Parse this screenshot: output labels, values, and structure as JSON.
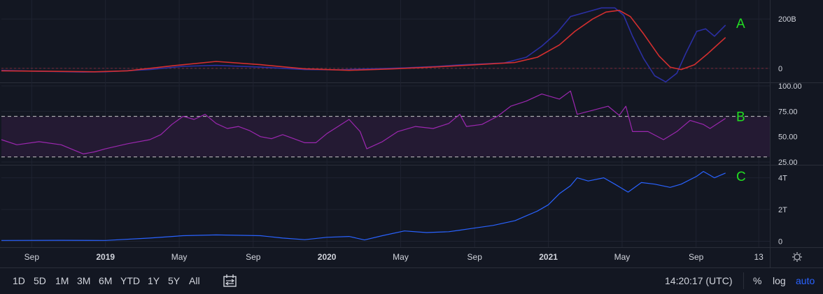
{
  "panes": [
    {
      "id": "A",
      "label": "A",
      "y_ticks": [
        {
          "v": 200,
          "label": "200B"
        },
        {
          "v": 0,
          "label": "0"
        }
      ]
    },
    {
      "id": "B",
      "label": "B",
      "y_ticks": [
        {
          "v": 100,
          "label": "100.00"
        },
        {
          "v": 75,
          "label": "75.00"
        },
        {
          "v": 50,
          "label": "50.00"
        },
        {
          "v": 25,
          "label": "25.00"
        }
      ]
    },
    {
      "id": "C",
      "label": "C",
      "y_ticks": [
        {
          "v": 4,
          "label": "4T"
        },
        {
          "v": 2,
          "label": "2T"
        },
        {
          "v": 0,
          "label": "0"
        }
      ]
    }
  ],
  "x_axis": {
    "ticks": [
      {
        "t": 2018.667,
        "label": "Sep",
        "bold": false
      },
      {
        "t": 2019.0,
        "label": "2019",
        "bold": true
      },
      {
        "t": 2019.333,
        "label": "May",
        "bold": false
      },
      {
        "t": 2019.667,
        "label": "Sep",
        "bold": false
      },
      {
        "t": 2020.0,
        "label": "2020",
        "bold": true
      },
      {
        "t": 2020.333,
        "label": "May",
        "bold": false
      },
      {
        "t": 2020.667,
        "label": "Sep",
        "bold": false
      },
      {
        "t": 2021.0,
        "label": "2021",
        "bold": true
      },
      {
        "t": 2021.333,
        "label": "May",
        "bold": false
      },
      {
        "t": 2021.667,
        "label": "Sep",
        "bold": false
      },
      {
        "t": 2021.95,
        "label": "13",
        "bold": false
      }
    ]
  },
  "chart_data": {
    "type": "line",
    "x_range": [
      2018.53,
      2022.0
    ],
    "panes": [
      {
        "id": "A",
        "ylim": [
          -40,
          260
        ],
        "reference_lines": [
          0
        ],
        "series": [
          {
            "color": "#2b2fa3",
            "points": [
              [
                2018.53,
                -8
              ],
              [
                2018.7,
                -12
              ],
              [
                2018.9,
                -15
              ],
              [
                2019.0,
                -14
              ],
              [
                2019.2,
                -5
              ],
              [
                2019.35,
                8
              ],
              [
                2019.5,
                12
              ],
              [
                2019.7,
                5
              ],
              [
                2019.9,
                -5
              ],
              [
                2020.05,
                -6
              ],
              [
                2020.2,
                -2
              ],
              [
                2020.35,
                2
              ],
              [
                2020.5,
                8
              ],
              [
                2020.6,
                14
              ],
              [
                2020.7,
                18
              ],
              [
                2020.8,
                22
              ],
              [
                2020.9,
                45
              ],
              [
                2020.97,
                90
              ],
              [
                2021.04,
                145
              ],
              [
                2021.1,
                210
              ],
              [
                2021.18,
                230
              ],
              [
                2021.24,
                245
              ],
              [
                2021.3,
                245
              ],
              [
                2021.34,
                215
              ],
              [
                2021.38,
                130
              ],
              [
                2021.43,
                40
              ],
              [
                2021.48,
                -30
              ],
              [
                2021.53,
                -55
              ],
              [
                2021.58,
                -20
              ],
              [
                2021.62,
                60
              ],
              [
                2021.67,
                150
              ],
              [
                2021.71,
                160
              ],
              [
                2021.75,
                130
              ],
              [
                2021.8,
                175
              ]
            ]
          },
          {
            "color": "#d42f2f",
            "points": [
              [
                2018.53,
                -10
              ],
              [
                2018.75,
                -12
              ],
              [
                2018.95,
                -14
              ],
              [
                2019.1,
                -10
              ],
              [
                2019.3,
                10
              ],
              [
                2019.5,
                28
              ],
              [
                2019.7,
                15
              ],
              [
                2019.9,
                -2
              ],
              [
                2020.1,
                -8
              ],
              [
                2020.3,
                -2
              ],
              [
                2020.5,
                6
              ],
              [
                2020.7,
                16
              ],
              [
                2020.85,
                24
              ],
              [
                2020.95,
                45
              ],
              [
                2021.05,
                95
              ],
              [
                2021.12,
                150
              ],
              [
                2021.2,
                200
              ],
              [
                2021.26,
                228
              ],
              [
                2021.32,
                235
              ],
              [
                2021.37,
                210
              ],
              [
                2021.43,
                140
              ],
              [
                2021.5,
                50
              ],
              [
                2021.55,
                5
              ],
              [
                2021.6,
                -5
              ],
              [
                2021.66,
                15
              ],
              [
                2021.72,
                60
              ],
              [
                2021.8,
                125
              ]
            ]
          }
        ]
      },
      {
        "id": "B",
        "ylim": [
          25,
          100
        ],
        "band": [
          30,
          70
        ],
        "reference_lines": [
          70,
          30
        ],
        "series": [
          {
            "color": "#9c27b0",
            "points": [
              [
                2018.53,
                47
              ],
              [
                2018.6,
                42
              ],
              [
                2018.7,
                45
              ],
              [
                2018.8,
                42
              ],
              [
                2018.9,
                33
              ],
              [
                2018.95,
                35
              ],
              [
                2019.0,
                38
              ],
              [
                2019.1,
                43
              ],
              [
                2019.2,
                47
              ],
              [
                2019.25,
                52
              ],
              [
                2019.3,
                62
              ],
              [
                2019.35,
                70
              ],
              [
                2019.4,
                67
              ],
              [
                2019.45,
                72
              ],
              [
                2019.5,
                63
              ],
              [
                2019.55,
                58
              ],
              [
                2019.6,
                60
              ],
              [
                2019.65,
                56
              ],
              [
                2019.7,
                50
              ],
              [
                2019.75,
                48
              ],
              [
                2019.8,
                52
              ],
              [
                2019.85,
                48
              ],
              [
                2019.9,
                44
              ],
              [
                2019.95,
                44
              ],
              [
                2020.0,
                53
              ],
              [
                2020.05,
                60
              ],
              [
                2020.1,
                67
              ],
              [
                2020.15,
                55
              ],
              [
                2020.18,
                38
              ],
              [
                2020.25,
                45
              ],
              [
                2020.32,
                55
              ],
              [
                2020.4,
                60
              ],
              [
                2020.48,
                58
              ],
              [
                2020.55,
                63
              ],
              [
                2020.6,
                72
              ],
              [
                2020.63,
                60
              ],
              [
                2020.7,
                62
              ],
              [
                2020.77,
                70
              ],
              [
                2020.83,
                80
              ],
              [
                2020.9,
                85
              ],
              [
                2020.97,
                92
              ],
              [
                2021.05,
                87
              ],
              [
                2021.1,
                95
              ],
              [
                2021.13,
                72
              ],
              [
                2021.2,
                76
              ],
              [
                2021.27,
                80
              ],
              [
                2021.32,
                71
              ],
              [
                2021.35,
                80
              ],
              [
                2021.38,
                55
              ],
              [
                2021.45,
                55
              ],
              [
                2021.52,
                47
              ],
              [
                2021.58,
                55
              ],
              [
                2021.64,
                66
              ],
              [
                2021.7,
                62
              ],
              [
                2021.73,
                58
              ],
              [
                2021.8,
                68
              ]
            ]
          }
        ]
      },
      {
        "id": "C",
        "ylim": [
          -0.2,
          4.6
        ],
        "series": [
          {
            "color": "#2962ff",
            "points": [
              [
                2018.53,
                0.05
              ],
              [
                2018.8,
                0.06
              ],
              [
                2019.0,
                0.05
              ],
              [
                2019.2,
                0.2
              ],
              [
                2019.35,
                0.35
              ],
              [
                2019.5,
                0.4
              ],
              [
                2019.7,
                0.35
              ],
              [
                2019.8,
                0.2
              ],
              [
                2019.9,
                0.1
              ],
              [
                2020.0,
                0.25
              ],
              [
                2020.1,
                0.3
              ],
              [
                2020.17,
                0.08
              ],
              [
                2020.25,
                0.35
              ],
              [
                2020.35,
                0.65
              ],
              [
                2020.45,
                0.55
              ],
              [
                2020.55,
                0.6
              ],
              [
                2020.6,
                0.7
              ],
              [
                2020.65,
                0.8
              ],
              [
                2020.75,
                1.0
              ],
              [
                2020.85,
                1.3
              ],
              [
                2020.9,
                1.6
              ],
              [
                2020.95,
                1.9
              ],
              [
                2021.0,
                2.3
              ],
              [
                2021.05,
                3.0
              ],
              [
                2021.1,
                3.5
              ],
              [
                2021.13,
                4.0
              ],
              [
                2021.18,
                3.8
              ],
              [
                2021.25,
                4.0
              ],
              [
                2021.3,
                3.6
              ],
              [
                2021.36,
                3.1
              ],
              [
                2021.42,
                3.7
              ],
              [
                2021.48,
                3.6
              ],
              [
                2021.55,
                3.4
              ],
              [
                2021.6,
                3.6
              ],
              [
                2021.67,
                4.1
              ],
              [
                2021.7,
                4.4
              ],
              [
                2021.75,
                4.0
              ],
              [
                2021.8,
                4.3
              ]
            ]
          }
        ]
      }
    ]
  },
  "bottom_bar": {
    "ranges": [
      "1D",
      "5D",
      "1M",
      "3M",
      "6M",
      "YTD",
      "1Y",
      "5Y",
      "All"
    ],
    "time": "14:20:17 (UTC)",
    "percent": "%",
    "log": "log",
    "auto": "auto"
  },
  "colors": {
    "background": "#131722",
    "grid": "#1f2330",
    "text": "#d1d4dc",
    "pane_label": "#22dd22",
    "band_fill": "#241a33",
    "auto": "#2962ff"
  }
}
